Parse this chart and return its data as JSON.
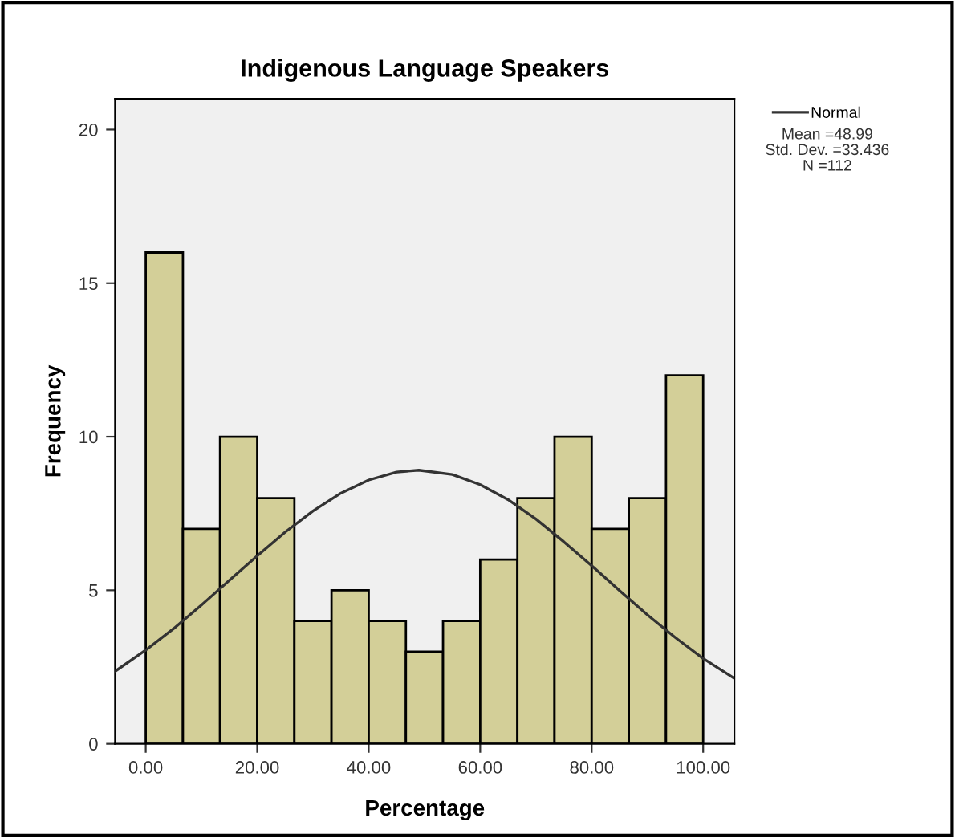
{
  "chart_data": {
    "type": "histogram",
    "title": "Indigenous Language Speakers",
    "xlabel": "Percentage",
    "ylabel": "Frequency",
    "bins": [
      0,
      6.67,
      13.33,
      20,
      26.67,
      33.33,
      40,
      46.67,
      53.33,
      60,
      66.67,
      73.33,
      80,
      86.67,
      93.33,
      100
    ],
    "values": [
      16,
      7,
      10,
      8,
      4,
      5,
      4,
      3,
      4,
      6,
      8,
      10,
      7,
      8,
      12
    ],
    "color": "#d3cf98",
    "series": [
      {
        "type": "line",
        "name": "Normal",
        "color": "#333333",
        "marker": "none",
        "x": [
          -5.5,
          0,
          5,
          10,
          15,
          20,
          25,
          30,
          35,
          40,
          45,
          49,
          55,
          60,
          65,
          70,
          75,
          80,
          85,
          90,
          95,
          100,
          105.5
        ],
        "values": [
          2.36,
          3.05,
          3.75,
          4.52,
          5.32,
          6.12,
          6.89,
          7.58,
          8.16,
          8.59,
          8.85,
          8.91,
          8.77,
          8.44,
          7.95,
          7.32,
          6.58,
          5.8,
          4.99,
          4.2,
          3.46,
          2.78,
          2.14
        ]
      }
    ],
    "xlim": [
      -5.5,
      105.6
    ],
    "ylim": [
      0,
      21
    ],
    "xticks": [
      {
        "value": 0,
        "label": "0.00"
      },
      {
        "value": 20,
        "label": "20.00"
      },
      {
        "value": 40,
        "label": "40.00"
      },
      {
        "value": 60,
        "label": "60.00"
      },
      {
        "value": 80,
        "label": "80.00"
      },
      {
        "value": 100,
        "label": "100.00"
      }
    ],
    "yticks": [
      0,
      5,
      10,
      15,
      20
    ],
    "grid": false,
    "legend": "top right",
    "annotations": [
      "Mean =48.99",
      "Std. Dev. =33.436",
      "N =112"
    ]
  }
}
